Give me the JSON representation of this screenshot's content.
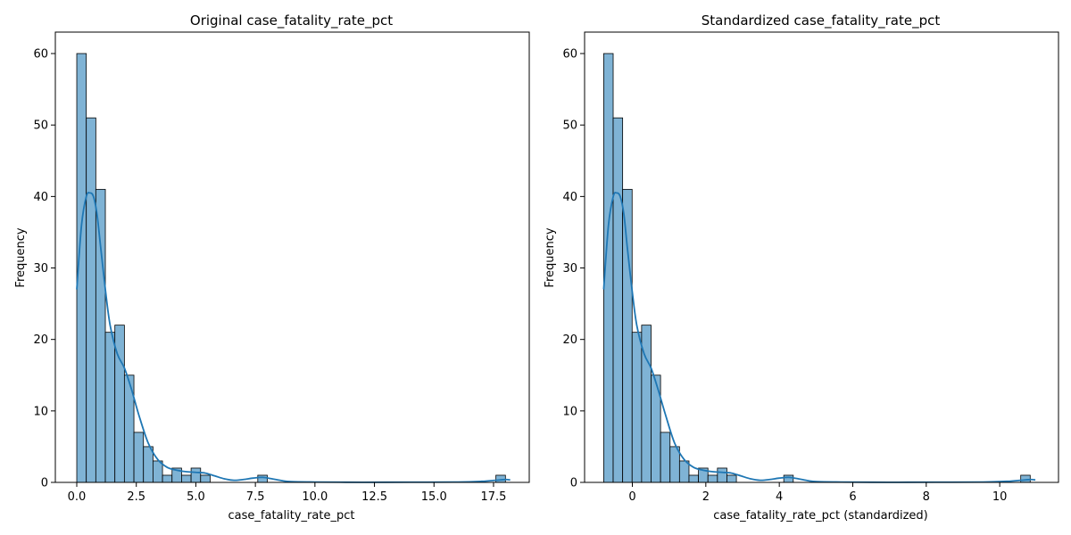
{
  "chart_data": [
    {
      "type": "bar",
      "subtype": "histogram-with-kde",
      "title": "Original case_fatality_rate_pct",
      "xlabel": "case_fatality_rate_pct",
      "ylabel": "Frequency",
      "xlim": [
        -0.9,
        19.0
      ],
      "ylim": [
        0,
        63
      ],
      "xticks": [
        0,
        2.5,
        5,
        7.5,
        10,
        12.5,
        15,
        17.5
      ],
      "xtick_labels": [
        "0.0",
        "2.5",
        "5.0",
        "7.5",
        "10.0",
        "12.5",
        "15.0",
        "17.5"
      ],
      "yticks": [
        0,
        10,
        20,
        30,
        40,
        50,
        60
      ],
      "ytick_labels": [
        "0",
        "10",
        "20",
        "30",
        "40",
        "50",
        "60"
      ],
      "bin_start": 0.0,
      "bin_width": 0.4,
      "values": [
        60,
        51,
        41,
        21,
        22,
        15,
        7,
        5,
        3,
        1,
        2,
        1,
        2,
        1,
        0,
        0,
        0,
        0,
        0,
        1,
        0,
        0,
        0,
        0,
        0,
        0,
        0,
        0,
        0,
        0,
        0,
        0,
        0,
        0,
        0,
        0,
        0,
        0,
        0,
        0,
        0,
        0,
        0,
        0,
        1
      ],
      "kde": {
        "x": [
          0.0,
          0.2,
          0.4,
          0.55,
          0.7,
          0.85,
          1.0,
          1.2,
          1.4,
          1.7,
          2.0,
          2.3,
          2.6,
          3.0,
          3.4,
          3.8,
          4.2,
          4.6,
          5.0,
          5.4,
          5.8,
          6.2,
          6.6,
          7.0,
          7.4,
          7.8,
          8.2,
          8.6,
          9.0,
          10.0,
          12.0,
          14.0,
          16.0,
          17.0,
          17.6,
          18.0,
          18.2
        ],
        "y": [
          27,
          36,
          40,
          40.5,
          40,
          37.5,
          33,
          27,
          22,
          18,
          16,
          13,
          9.5,
          5.5,
          3.2,
          2.1,
          1.7,
          1.5,
          1.4,
          1.3,
          0.9,
          0.5,
          0.3,
          0.4,
          0.6,
          0.7,
          0.5,
          0.25,
          0.1,
          0.05,
          0.02,
          0.03,
          0.05,
          0.15,
          0.3,
          0.4,
          0.35
        ]
      },
      "bar_color": "#7fb3d5",
      "line_color": "#1f77b4",
      "grid": false
    },
    {
      "type": "bar",
      "subtype": "histogram-with-kde",
      "title": "Standardized case_fatality_rate_pct",
      "xlabel": "case_fatality_rate_pct (standardized)",
      "ylabel": "Frequency",
      "xlim": [
        -1.3,
        11.6
      ],
      "ylim": [
        0,
        63
      ],
      "xticks": [
        0,
        2,
        4,
        6,
        8,
        10
      ],
      "xtick_labels": [
        "0",
        "2",
        "4",
        "6",
        "8",
        "10"
      ],
      "yticks": [
        0,
        10,
        20,
        30,
        40,
        50,
        60
      ],
      "ytick_labels": [
        "0",
        "10",
        "20",
        "30",
        "40",
        "50",
        "60"
      ],
      "bin_start": -0.78,
      "bin_width": 0.258,
      "values": [
        60,
        51,
        41,
        21,
        22,
        15,
        7,
        5,
        3,
        1,
        2,
        1,
        2,
        1,
        0,
        0,
        0,
        0,
        0,
        1,
        0,
        0,
        0,
        0,
        0,
        0,
        0,
        0,
        0,
        0,
        0,
        0,
        0,
        0,
        0,
        0,
        0,
        0,
        0,
        0,
        0,
        0,
        0,
        0,
        1
      ],
      "kde": {
        "x": [
          -0.78,
          -0.65,
          -0.52,
          -0.43,
          -0.33,
          -0.23,
          -0.14,
          -0.01,
          0.12,
          0.32,
          0.51,
          0.7,
          0.9,
          1.15,
          1.41,
          1.67,
          1.93,
          2.19,
          2.45,
          2.7,
          2.96,
          3.22,
          3.48,
          3.74,
          4.0,
          4.26,
          4.52,
          4.77,
          5.03,
          5.68,
          6.97,
          8.26,
          9.55,
          10.2,
          10.58,
          10.84,
          10.97
        ],
        "y": [
          27,
          36,
          40,
          40.5,
          40,
          37.5,
          33,
          27,
          22,
          18,
          16,
          13,
          9.5,
          5.5,
          3.2,
          2.1,
          1.7,
          1.5,
          1.4,
          1.3,
          0.9,
          0.5,
          0.3,
          0.4,
          0.6,
          0.7,
          0.5,
          0.25,
          0.1,
          0.05,
          0.02,
          0.03,
          0.05,
          0.15,
          0.3,
          0.4,
          0.35
        ]
      },
      "bar_color": "#7fb3d5",
      "line_color": "#1f77b4",
      "grid": false
    }
  ]
}
